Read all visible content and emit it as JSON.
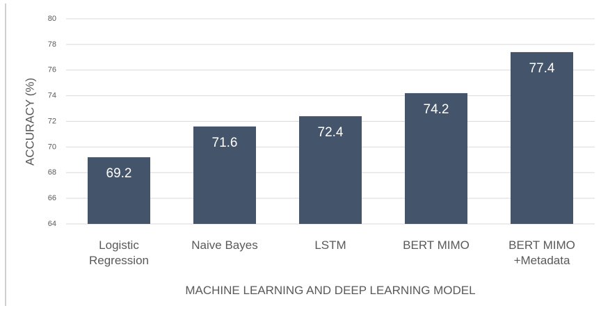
{
  "chart_data": {
    "type": "bar",
    "categories": [
      "Logistic Regression",
      "Naive Bayes",
      "LSTM",
      "BERT MIMO",
      "BERT MIMO +Metadata"
    ],
    "values": [
      69.2,
      71.6,
      72.4,
      74.2,
      77.4
    ],
    "color": "#44546a",
    "ylim": [
      64,
      80
    ],
    "yticks": [
      64,
      66,
      68,
      70,
      72,
      74,
      76,
      78,
      80
    ],
    "grid": true,
    "ylabel": "ACCURACY (%)",
    "xlabel": "MACHINE LEARNING AND DEEP LEARNING MODEL"
  }
}
